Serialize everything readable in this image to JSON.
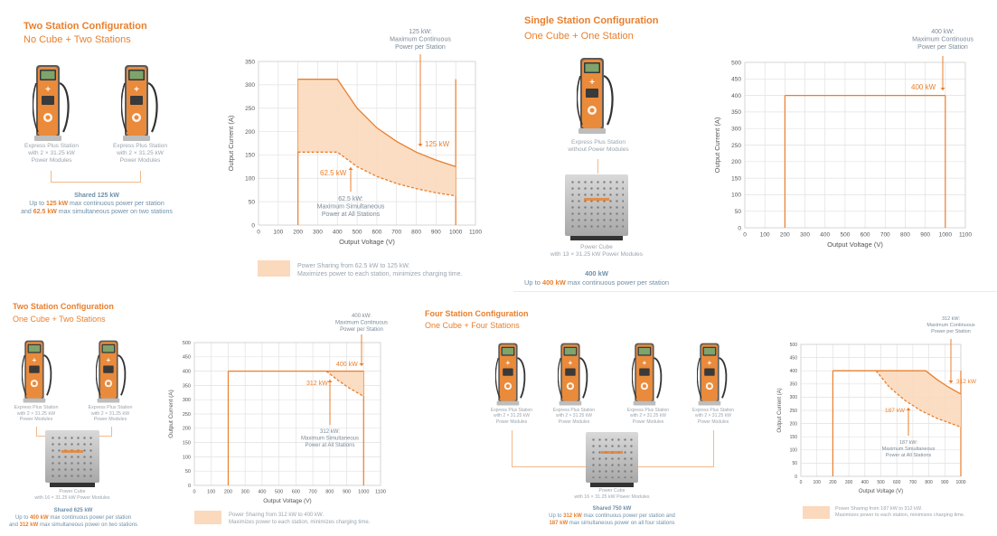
{
  "colors": {
    "accent": "#e97f2c",
    "fill": "#fbd9bd",
    "grid": "#e1e1e1",
    "text": "#8a8a8a",
    "blue_text": "#6f8fa8"
  },
  "panels": [
    {
      "title": "Two Station Configuration",
      "subtitle": "No Cube + Two Stations",
      "stations": [
        {
          "label": [
            "Express Plus Station",
            "with 2 × 31.25 kW",
            "Power Modules"
          ]
        },
        {
          "label": [
            "Express Plus Station",
            "with 2 × 31.25 kW",
            "Power Modules"
          ]
        }
      ],
      "shared": {
        "heading": "Shared 125 kW",
        "line1_pre": "Up to ",
        "line1_bold": "125 kW",
        "line1_post": " max continuous power per station",
        "line2_pre": "and ",
        "line2_bold": "62.5 kW",
        "line2_post": " max simultaneous power on two stations"
      },
      "legend": {
        "line1": "Power Sharing from 62.5 kW to 125 kW.",
        "line2": "Maximizes power to each station, minimizes charging time."
      }
    },
    {
      "title": "Single Station Configuration",
      "subtitle": "One Cube + One Station",
      "stations": [
        {
          "label": [
            "Express Plus Station",
            "without Power Modules"
          ]
        }
      ],
      "cube": {
        "label": [
          "Power Cube",
          "with 13 × 31.25 kW Power Modules"
        ]
      },
      "shared": {
        "heading": "400 kW",
        "line1_pre": "Up to ",
        "line1_bold": "400 kW",
        "line1_post": " max continuous power per station"
      }
    },
    {
      "title": "Two Station Configuration",
      "subtitle": "One Cube + Two Stations",
      "stations": [
        {
          "label": [
            "Express Plus Station",
            "with 2 × 31.25 kW",
            "Power Modules"
          ]
        },
        {
          "label": [
            "Express Plus Station",
            "with 2 × 31.25 kW",
            "Power Modules"
          ]
        }
      ],
      "cube": {
        "label": [
          "Power Cube",
          "with 16 × 31.25 kW Power Modules"
        ]
      },
      "shared": {
        "heading": "Shared 625 kW",
        "line1_pre": "Up to ",
        "line1_bold": "400 kW",
        "line1_post": " max continuous power per station",
        "line2_pre": "and ",
        "line2_bold": "312 kW",
        "line2_post": " max simultaneous power on two stations"
      },
      "legend": {
        "line1": "Power Sharing from 312 kW to 400 kW.",
        "line2": "Maximizes power to each station, minimizes charging time."
      }
    },
    {
      "title": "Four Station Configuration",
      "subtitle": "One Cube + Four Stations",
      "stations": [
        {
          "label": [
            "Express Plus Station",
            "with 2 × 31.25 kW",
            "Power Modules"
          ]
        },
        {
          "label": [
            "Express Plus Station",
            "with 2 × 31.25 kW",
            "Power Modules"
          ]
        },
        {
          "label": [
            "Express Plus Station",
            "with 2 × 31.25 kW",
            "Power Modules"
          ]
        },
        {
          "label": [
            "Express Plus Station",
            "with 2 × 31.25 kW",
            "Power Modules"
          ]
        }
      ],
      "cube": {
        "label": [
          "Power Cube",
          "with 16 × 31.25 kW Power Modules"
        ]
      },
      "shared": {
        "heading": "Shared 750 kW",
        "line1_pre": "Up to ",
        "line1_bold": "312 kW",
        "line1_post": " max continuous power per station and",
        "line2_pre": "",
        "line2_bold": "187 kW",
        "line2_post": " max simultaneous power on all four stations"
      },
      "legend": {
        "line1": "Power Sharing from 187 kW to 312 kW.",
        "line2": "Maximizes power to each station, minimizes charging time."
      }
    }
  ],
  "chart_data": [
    {
      "type": "area",
      "xlabel": "Output Voltage (V)",
      "ylabel": "Output Current (A)",
      "xlim": [
        0,
        1100
      ],
      "ylim": [
        0,
        350
      ],
      "xticks": [
        0,
        100,
        200,
        300,
        400,
        500,
        600,
        700,
        800,
        900,
        1000,
        1100
      ],
      "yticks": [
        0,
        50,
        100,
        150,
        200,
        250,
        300,
        350
      ],
      "series": [
        {
          "name": "125 kW",
          "points": [
            [
              200,
              312
            ],
            [
              400,
              312
            ],
            [
              500,
              250
            ],
            [
              600,
              208
            ],
            [
              700,
              179
            ],
            [
              800,
              156
            ],
            [
              900,
              139
            ],
            [
              1000,
              125
            ]
          ]
        },
        {
          "name": "62.5 kW",
          "points": [
            [
              200,
              156
            ],
            [
              400,
              156
            ],
            [
              500,
              125
            ],
            [
              600,
              104
            ],
            [
              700,
              89
            ],
            [
              800,
              78
            ],
            [
              900,
              69
            ],
            [
              1000,
              62.5
            ]
          ]
        }
      ],
      "verticals": [
        200,
        1000
      ],
      "annotations": [
        {
          "text": [
            "125 kW:",
            "Maximum Continuous",
            "Power per Station"
          ]
        },
        {
          "text": [
            "125 kW"
          ]
        },
        {
          "text": [
            "62.5 kW"
          ]
        },
        {
          "text": [
            "62.5 kW:",
            "Maximum Simultaneous",
            "Power at All Stations"
          ]
        }
      ]
    },
    {
      "type": "line",
      "xlabel": "Output Voltage (V)",
      "ylabel": "Output Current (A)",
      "xlim": [
        0,
        1100
      ],
      "ylim": [
        0,
        500
      ],
      "xticks": [
        0,
        100,
        200,
        300,
        400,
        500,
        600,
        700,
        800,
        900,
        1000,
        1100
      ],
      "yticks": [
        0,
        50,
        100,
        150,
        200,
        250,
        300,
        350,
        400,
        450,
        500
      ],
      "series": [
        {
          "name": "400 kW",
          "points": [
            [
              200,
              400
            ],
            [
              1000,
              400
            ]
          ]
        }
      ],
      "verticals": [
        200,
        1000
      ],
      "annotations": [
        {
          "text": [
            "400 kW:",
            "Maximum Continuous",
            "Power per Station"
          ]
        },
        {
          "text": [
            "400 kW"
          ]
        }
      ]
    },
    {
      "type": "area",
      "xlabel": "Output Voltage (V)",
      "ylabel": "Output Current (A)",
      "xlim": [
        0,
        1100
      ],
      "ylim": [
        0,
        500
      ],
      "xticks": [
        0,
        100,
        200,
        300,
        400,
        500,
        600,
        700,
        800,
        900,
        1000,
        1100
      ],
      "yticks": [
        0,
        50,
        100,
        150,
        200,
        250,
        300,
        350,
        400,
        450,
        500
      ],
      "series": [
        {
          "name": "400 kW",
          "points": [
            [
              200,
              400
            ],
            [
              1000,
              400
            ]
          ]
        },
        {
          "name": "312 kW",
          "points": [
            [
              780,
              400
            ],
            [
              850,
              367
            ],
            [
              920,
              339
            ],
            [
              1000,
              312
            ]
          ]
        }
      ],
      "verticals": [
        200,
        1000
      ],
      "annotations": [
        {
          "text": [
            "400 kW:",
            "Maximum Continuous",
            "Power per Station"
          ]
        },
        {
          "text": [
            "400 kW"
          ]
        },
        {
          "text": [
            "312 kW"
          ]
        },
        {
          "text": [
            "312 kW:",
            "Maximum Simultaneous",
            "Power at All Stations"
          ]
        }
      ]
    },
    {
      "type": "area",
      "xlabel": "Output Voltage (V)",
      "ylabel": "Output Current (A)",
      "xlim": [
        0,
        1000
      ],
      "ylim": [
        0,
        500
      ],
      "xticks": [
        0,
        100,
        200,
        300,
        400,
        500,
        600,
        700,
        800,
        900,
        1000
      ],
      "yticks": [
        0,
        50,
        100,
        150,
        200,
        250,
        300,
        350,
        400,
        450,
        500
      ],
      "series": [
        {
          "name": "312 kW",
          "points": [
            [
              200,
              400
            ],
            [
              780,
              400
            ],
            [
              850,
              367
            ],
            [
              920,
              339
            ],
            [
              1000,
              312
            ]
          ]
        },
        {
          "name": "187 kW",
          "points": [
            [
              470,
              400
            ],
            [
              550,
              340
            ],
            [
              650,
              288
            ],
            [
              750,
              249
            ],
            [
              850,
              220
            ],
            [
              1000,
              187
            ]
          ]
        }
      ],
      "verticals": [
        200,
        1000
      ],
      "annotations": [
        {
          "text": [
            "312 kW:",
            "Maximum Continuous",
            "Power per Station"
          ]
        },
        {
          "text": [
            "312 kW"
          ]
        },
        {
          "text": [
            "187 kW"
          ]
        },
        {
          "text": [
            "187 kW:",
            "Maximum Simultaneous",
            "Power at All Stations"
          ]
        }
      ]
    }
  ]
}
